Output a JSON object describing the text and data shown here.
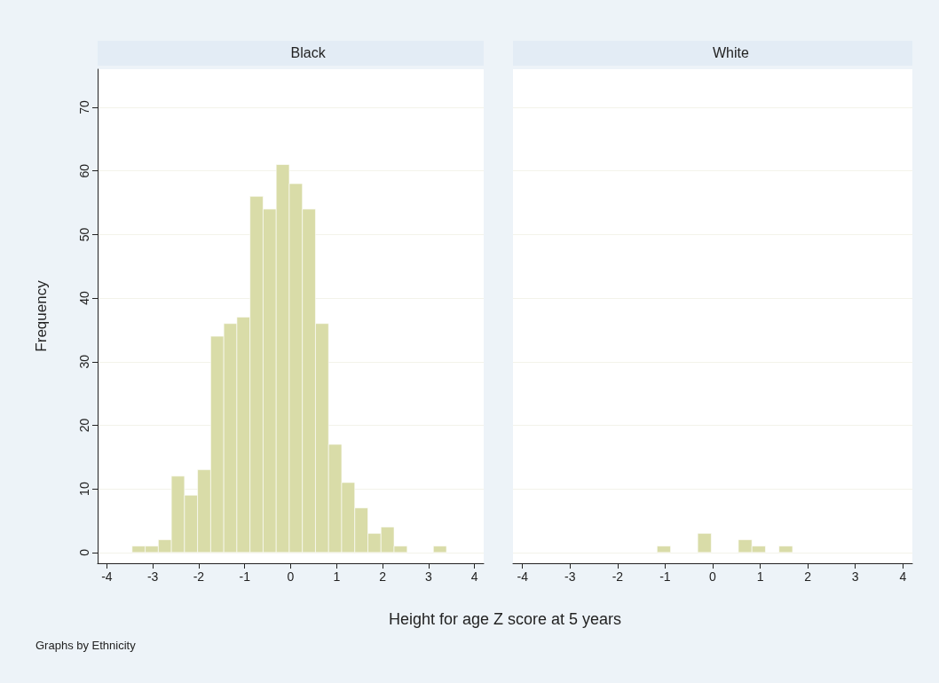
{
  "chart_data": [
    {
      "type": "histogram",
      "title": "Black",
      "ylabel": "Frequency",
      "xlabel": "Height for age Z score at 5 years",
      "annotations": [
        "Graphs by Ethnicity"
      ],
      "color": "#d9dca8",
      "bins": [
        -3.45,
        -3.165,
        -2.88,
        -2.595,
        -2.31,
        -2.025,
        -1.74,
        -1.455,
        -1.17,
        -0.885,
        -0.6,
        -0.315,
        -0.03,
        0.255,
        0.54,
        0.825,
        1.11,
        1.395,
        1.68,
        1.965,
        2.25,
        2.535,
        2.82,
        3.105,
        3.39
      ],
      "values": [
        1,
        1,
        2,
        12,
        9,
        13,
        34,
        36,
        37,
        56,
        54,
        61,
        58,
        54,
        36,
        17,
        11,
        7,
        3,
        4,
        1,
        0,
        0,
        1
      ],
      "xlim": [
        -4.2,
        4.2
      ],
      "xticks": [
        -4,
        -3,
        -2,
        -1,
        0,
        1,
        2,
        3,
        4
      ],
      "ylim": [
        -1.7,
        76
      ],
      "yticks": [
        0,
        10,
        20,
        30,
        40,
        50,
        60,
        70
      ],
      "grid": "y"
    },
    {
      "type": "histogram",
      "title": "White",
      "color": "#d9dca8",
      "tick_labels": "x",
      "bins": [
        -3.45,
        -3.165,
        -2.88,
        -2.595,
        -2.31,
        -2.025,
        -1.74,
        -1.455,
        -1.17,
        -0.885,
        -0.6,
        -0.315,
        -0.03,
        0.255,
        0.54,
        0.825,
        1.11,
        1.395,
        1.68,
        1.965,
        2.25,
        2.535,
        2.82,
        3.105,
        3.39
      ],
      "values": [
        0,
        0,
        0,
        0,
        0,
        0,
        0,
        0,
        1,
        0,
        0,
        3,
        0,
        0,
        2,
        1,
        0,
        1,
        0,
        0,
        0,
        0,
        0,
        0
      ],
      "xlim": [
        -4.2,
        4.2
      ],
      "xticks": [
        -4,
        -3,
        -2,
        -1,
        0,
        1,
        2,
        3,
        4
      ],
      "ylim": [
        -1.7,
        76
      ],
      "yticks": [
        0,
        10,
        20,
        30,
        40,
        50,
        60,
        70
      ],
      "grid": "y"
    }
  ]
}
